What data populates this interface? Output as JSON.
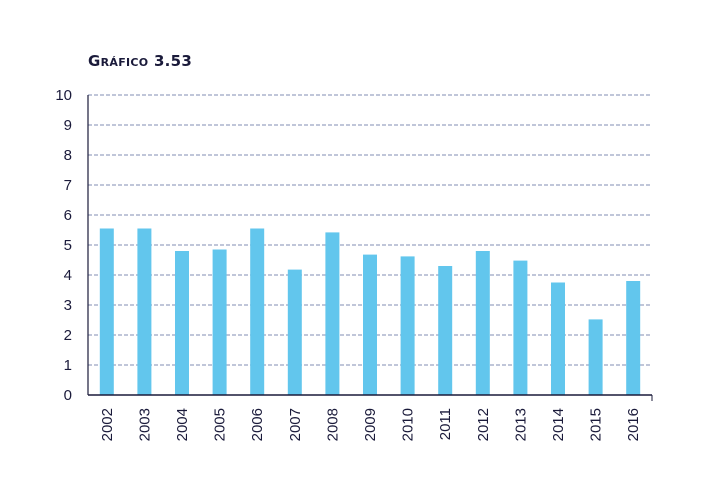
{
  "chart_data": {
    "type": "bar",
    "title": "Gráfico 3.53",
    "xlabel": "",
    "ylabel": "",
    "categories": [
      "2002",
      "2003",
      "2004",
      "2005",
      "2006",
      "2007",
      "2008",
      "2009",
      "2010",
      "2011",
      "2012",
      "2013",
      "2014",
      "2015",
      "2016"
    ],
    "values": [
      5.55,
      5.55,
      4.8,
      4.85,
      5.55,
      4.18,
      5.42,
      4.68,
      4.62,
      4.3,
      4.8,
      4.48,
      3.75,
      2.52,
      3.8
    ],
    "ylim": [
      0,
      10
    ],
    "yticks": [
      "0",
      "1",
      "2",
      "3",
      "4",
      "5",
      "6",
      "7",
      "8",
      "9",
      "10"
    ],
    "grid": true,
    "grid_style": "dashed",
    "legend": "none",
    "colors": {
      "bar": "#62c6ed",
      "grid": "#5a6a9a",
      "axis": "#1a1a3a",
      "text": "#1a1a3a"
    }
  }
}
